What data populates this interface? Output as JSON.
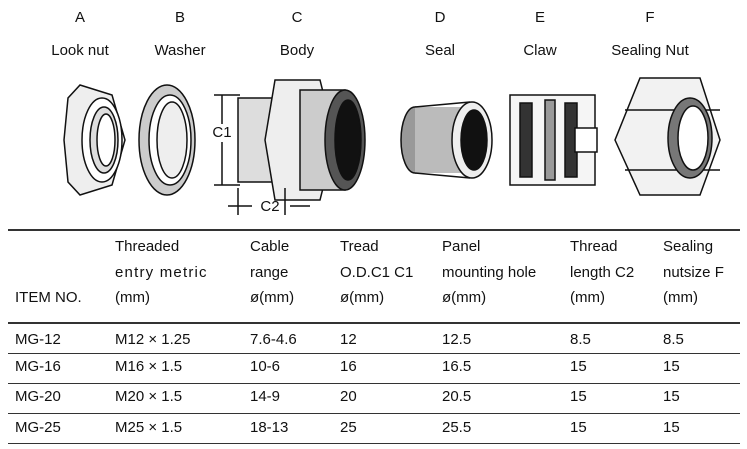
{
  "components": [
    {
      "letter": "A",
      "name": "Look nut"
    },
    {
      "letter": "B",
      "name": "Washer"
    },
    {
      "letter": "C",
      "name": "Body"
    },
    {
      "letter": "D",
      "name": "Seal"
    },
    {
      "letter": "E",
      "name": "Claw"
    },
    {
      "letter": "F",
      "name": "Sealing Nut"
    }
  ],
  "dimensions": {
    "c1": "C1",
    "c2": "C2"
  },
  "table": {
    "header": [
      [
        "ITEM NO."
      ],
      [
        "Threaded",
        "entry metric",
        "(mm)"
      ],
      [
        "Cable",
        "range",
        "ø(mm)"
      ],
      [
        "Tread",
        "O.D.C1 C1",
        "ø(mm)"
      ],
      [
        "Panel",
        "mounting hole",
        "ø(mm)"
      ],
      [
        "Thread",
        "length C2",
        "(mm)"
      ],
      [
        "Sealing",
        "nutsize F",
        "(mm)"
      ]
    ],
    "rows": [
      [
        "MG-12",
        "M12 × 1.25",
        "7.6-4.6",
        "12",
        "12.5",
        "8.5",
        "8.5"
      ],
      [
        "MG-16",
        "M16 × 1.5",
        "10-6",
        "16",
        "16.5",
        "15",
        "15"
      ],
      [
        "MG-20",
        "M20 × 1.5",
        "14-9",
        "20",
        "20.5",
        "15",
        "15"
      ],
      [
        "MG-25",
        "M25 × 1.5",
        "18-13",
        "25",
        "25.5",
        "15",
        "15"
      ]
    ]
  }
}
